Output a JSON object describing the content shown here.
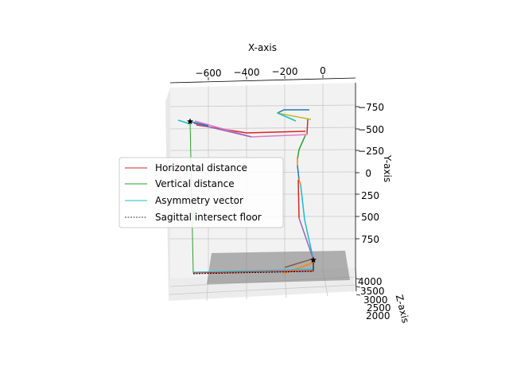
{
  "chart_data": {
    "type": "line",
    "projection": "3d",
    "title": "",
    "xlabel": "X-axis",
    "ylabel": "Y-axis",
    "zlabel": "Z-axis",
    "x_ticks": [
      "−600",
      "−400",
      "−200",
      "0"
    ],
    "y_ticks": [
      "−750",
      "−500",
      "−250",
      "0",
      "250",
      "500",
      "750"
    ],
    "z_ticks": [
      "4000",
      "3500",
      "3000",
      "2500",
      "2000"
    ],
    "grid": true,
    "legend_position": "center-left",
    "legend": [
      {
        "label": "Horizontal distance",
        "color": "#d62728",
        "style": "solid"
      },
      {
        "label": "Vertical distance",
        "color": "#2ca02c",
        "style": "solid"
      },
      {
        "label": "Asymmetry vector",
        "color": "#17becf",
        "style": "solid"
      },
      {
        "label": "Sagittal intersect floor",
        "color": "#000000",
        "style": "dashed"
      }
    ],
    "colors": {
      "pane": "#f2f2f2",
      "grid": "#b0b0b0",
      "floor": "#808080",
      "skeleton_blue": "#1f77b4",
      "skeleton_orange": "#ff7f0e",
      "skeleton_green": "#2ca02c",
      "skeleton_red": "#d62728",
      "skeleton_purple": "#9467bd",
      "skeleton_brown": "#8c564b",
      "skeleton_pink": "#e377c2",
      "skeleton_olive": "#bcbd22",
      "skeleton_cyan": "#17becf"
    }
  }
}
